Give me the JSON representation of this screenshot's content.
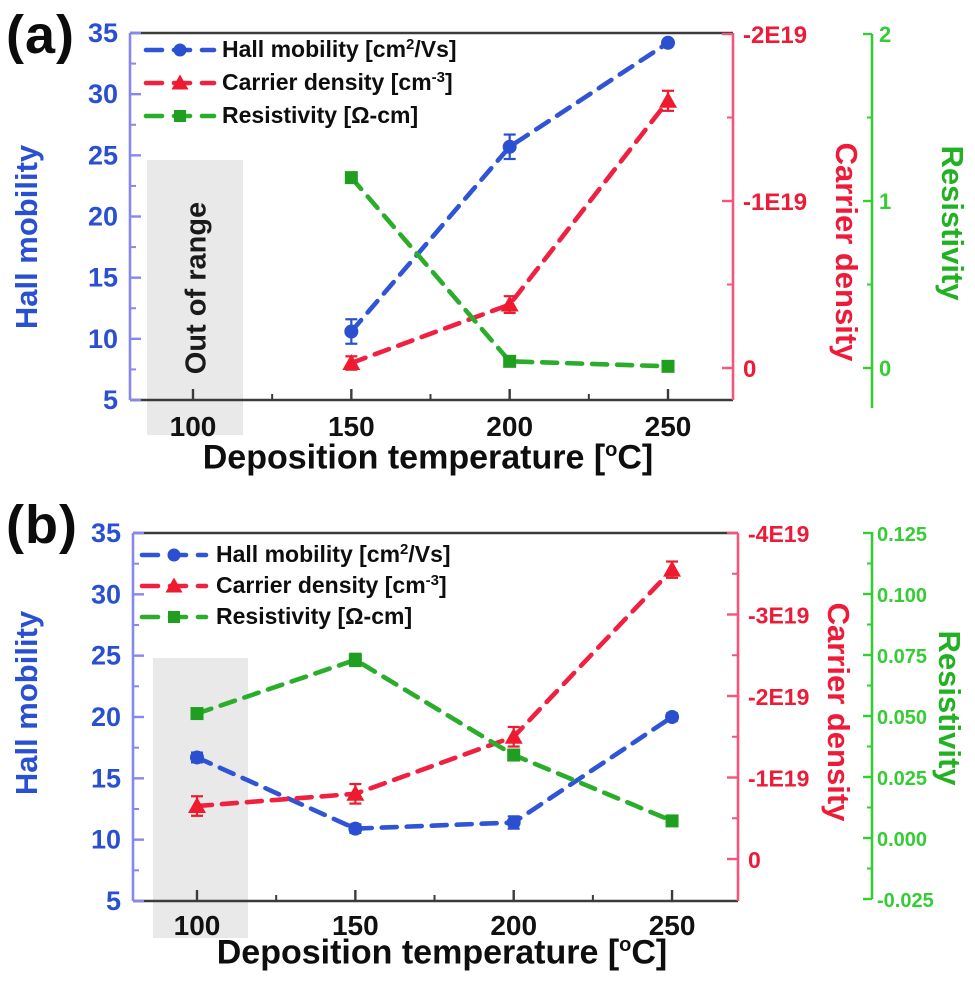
{
  "figure": {
    "colors": {
      "blue": "#2a50d2",
      "blue_axis_line": "#8787f0",
      "red": "#ee1b38",
      "red_axis_line": "#f4557a",
      "green": "#1f9e1f",
      "green_bright": "#35cc35",
      "green_title": "#22b122",
      "frame": "#3b3b3b",
      "band": "#e9e9e9",
      "text": "#111111"
    }
  },
  "chart_data": [
    {
      "type": "line",
      "panel_label": "(a)",
      "xlabel_parts": {
        "pre": "Deposition temperature [",
        "sup": "o",
        "post": "C]"
      },
      "x_ticks": [
        100,
        150,
        200,
        250
      ],
      "x_minor": [
        125,
        175,
        225
      ],
      "xlim": [
        80,
        270
      ],
      "axes": {
        "left": {
          "label": "Hall mobility",
          "lim": [
            5,
            35
          ],
          "ticks": [
            5,
            10,
            15,
            20,
            25,
            30,
            35
          ],
          "minor": [
            7.5,
            12.5,
            17.5,
            22.5,
            27.5,
            32.5
          ]
        },
        "right1": {
          "label": "Carrier density",
          "unit": "cm-3",
          "ticks": [
            0,
            -1,
            -2
          ],
          "tick_labels": [
            "0",
            "-1E19",
            "-2E19"
          ],
          "minor": [
            -0.5,
            -1.5
          ],
          "scale": "1E19"
        },
        "right2": {
          "label": "Resistivity",
          "unit": "Ohm-cm",
          "ticks": [
            0,
            1,
            2
          ],
          "tick_labels": [
            "0",
            "1",
            "2"
          ],
          "minor": [
            0.5,
            1.5
          ]
        }
      },
      "legend": [
        {
          "pre": "Hall mobility [cm",
          "sup": "2",
          "post": "/Vs]"
        },
        {
          "pre": "Carrier density [cm",
          "sup": "-3",
          "post": "]"
        },
        {
          "pre": "Resistivity [Ω-cm]",
          "sup": "",
          "post": ""
        }
      ],
      "series": [
        {
          "name": "Hall mobility [cm2/Vs]",
          "axis": "left",
          "marker": "circle",
          "color": "#2f55d6",
          "marker_color": "#2a4fd0",
          "x": [
            150,
            200,
            250
          ],
          "y": [
            10.6,
            25.7,
            34.2
          ],
          "yerr": [
            1.0,
            1.0,
            0
          ]
        },
        {
          "name": "Carrier density [cm-3]",
          "axis": "right1",
          "marker": "triangle",
          "color": "#ef2040",
          "marker_color": "#ee1b2e",
          "x": [
            150,
            200,
            250
          ],
          "y": [
            -0.03,
            -0.38,
            -1.6
          ],
          "yerr": [
            0.04,
            0.05,
            0.06
          ]
        },
        {
          "name": "Resistivity [Ohm-cm]",
          "axis": "right2",
          "marker": "square",
          "color": "#2aad2a",
          "marker_color": "#1f9e1f",
          "x": [
            150,
            200,
            250
          ],
          "y": [
            1.14,
            0.04,
            0.01
          ],
          "yerr": [
            0,
            0,
            0
          ]
        }
      ],
      "annotation": {
        "band_x": [
          86,
          116
        ],
        "band_label": "Out of range"
      }
    },
    {
      "type": "line",
      "panel_label": "(b)",
      "xlabel_parts": {
        "pre": "Deposition temperature [",
        "sup": "o",
        "post": "C]"
      },
      "x_ticks": [
        100,
        150,
        200,
        250
      ],
      "x_minor": [
        125,
        175,
        225
      ],
      "xlim": [
        80,
        270
      ],
      "axes": {
        "left": {
          "label": "Hall mobility",
          "lim": [
            5,
            35
          ],
          "ticks": [
            5,
            10,
            15,
            20,
            25,
            30,
            35
          ],
          "minor": [
            7.5,
            12.5,
            17.5,
            22.5,
            27.5,
            32.5
          ]
        },
        "right1": {
          "label": "Carrier density",
          "unit": "cm-3",
          "ticks": [
            0,
            -1,
            -2,
            -3,
            -4
          ],
          "tick_labels": [
            "0",
            "-1E19",
            "-2E19",
            "-3E19",
            "-4E19"
          ],
          "minor": [
            -0.5,
            -1.5,
            -2.5,
            -3.5
          ],
          "scale": "1E19"
        },
        "right2": {
          "label": "Resistivity",
          "unit": "Ohm-cm",
          "ticks": [
            0.125,
            0.1,
            0.075,
            0.05,
            0.025,
            0,
            -0.025
          ],
          "tick_labels": [
            "0.125",
            "0.100",
            "0.075",
            "0.050",
            "0.025",
            "0.000",
            "-0.025"
          ],
          "minor": [
            0.1125,
            0.0875,
            0.0625,
            0.0375,
            0.0125,
            -0.0125
          ]
        }
      },
      "legend": [
        {
          "pre": "Hall mobility [cm",
          "sup": "2",
          "post": "/Vs]"
        },
        {
          "pre": "Carrier density [cm",
          "sup": "-3",
          "post": "]"
        },
        {
          "pre": "Resistivity [Ω-cm]",
          "sup": "",
          "post": ""
        }
      ],
      "series": [
        {
          "name": "Hall mobility [cm2/Vs]",
          "axis": "left",
          "marker": "circle",
          "color": "#2f55d6",
          "marker_color": "#2a4fd0",
          "x": [
            100,
            150,
            200,
            250
          ],
          "y": [
            16.7,
            10.9,
            11.4,
            20.0
          ],
          "yerr": [
            0.4,
            0.35,
            0.5,
            0.3
          ]
        },
        {
          "name": "Carrier density [cm-3]",
          "axis": "right1",
          "marker": "triangle",
          "color": "#ef2040",
          "marker_color": "#ee1b2e",
          "x": [
            100,
            150,
            200,
            250
          ],
          "y": [
            -0.65,
            -0.8,
            -1.5,
            -3.55
          ],
          "yerr": [
            0.12,
            0.12,
            0.12,
            0.1
          ]
        },
        {
          "name": "Resistivity [Ohm-cm]",
          "axis": "right2",
          "marker": "square",
          "color": "#2aad2a",
          "marker_color": "#1f9e1f",
          "x": [
            100,
            150,
            200,
            250
          ],
          "y": [
            0.051,
            0.073,
            0.034,
            0.007
          ],
          "yerr": [
            0.002,
            0.0025,
            0.002,
            0.001
          ]
        }
      ],
      "annotation": {
        "band_x": [
          86,
          116
        ],
        "band_label": ""
      }
    }
  ]
}
